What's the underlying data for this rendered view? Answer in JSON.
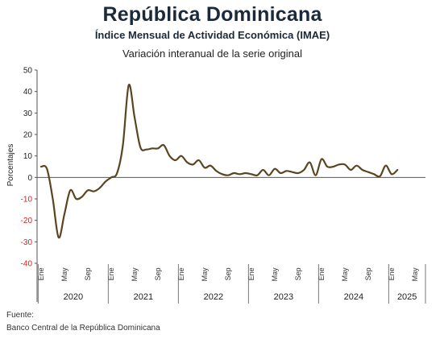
{
  "chart_data": {
    "type": "line",
    "title": "República Dominicana",
    "subtitle": "Índice Mensual de Actividad Económica (IMAE)",
    "subtitle2": "Variación interanual de la serie original",
    "ylabel": "Porcentajes",
    "ylim": [
      -40,
      50
    ],
    "yticks": [
      "50",
      "40",
      "30",
      "20",
      "10",
      "0",
      "-10",
      "-20",
      "-30",
      "-40"
    ],
    "line_color": "#5a4520",
    "negative_tick_color": "#e0201b",
    "grid": false,
    "month_ticks": [
      "Ene",
      "May",
      "Sep",
      "Ene",
      "May",
      "Sep",
      "Ene",
      "May",
      "Sep",
      "Ene",
      "May",
      "Sep",
      "Ene",
      "May",
      "Sep",
      "Ene",
      "May"
    ],
    "years": [
      "2020",
      "2021",
      "2022",
      "2023",
      "2024",
      "2025"
    ],
    "series": [
      {
        "name": "",
        "values": [
          5.0,
          4.0,
          -10.0,
          -28.0,
          -17.0,
          -6.0,
          -10.0,
          -9.0,
          -6.0,
          -6.5,
          -5.0,
          -2.0,
          0.0,
          2.0,
          15.0,
          43.0,
          28.0,
          14.0,
          13.0,
          13.5,
          13.5,
          15.0,
          10.0,
          8.0,
          10.0,
          7.0,
          6.0,
          8.0,
          4.5,
          5.5,
          3.0,
          1.5,
          1.0,
          2.0,
          1.5,
          2.0,
          1.5,
          1.0,
          3.5,
          1.0,
          4.0,
          2.0,
          3.0,
          2.5,
          2.0,
          3.5,
          7.0,
          1.0,
          8.5,
          5.0,
          5.0,
          6.0,
          6.0,
          3.5,
          5.5,
          3.5,
          2.5,
          1.5,
          0.5,
          5.5,
          1.5,
          3.5
        ]
      }
    ]
  },
  "source": {
    "label": "Fuente:",
    "text": "Banco Central de la República Dominicana"
  }
}
